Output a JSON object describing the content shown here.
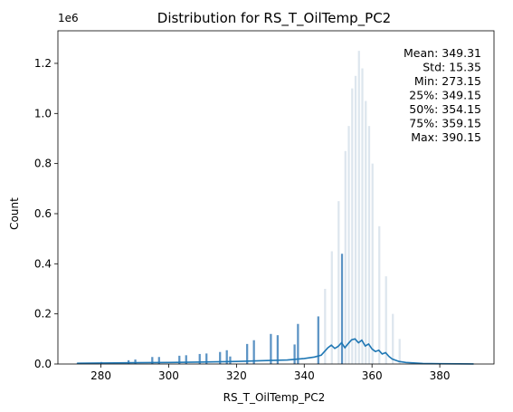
{
  "chart_data": {
    "type": "histogram",
    "title": "Distribution for RS_T_OilTemp_PC2",
    "xlabel": "RS_T_OilTemp_PC2",
    "ylabel": "Count",
    "y_offset_label": "1e6",
    "xlim": [
      267.3,
      396.0
    ],
    "ylim": [
      0,
      1.33
    ],
    "y_unit_multiplier": 1000000,
    "x_ticks": [
      280,
      300,
      320,
      340,
      360,
      380
    ],
    "y_ticks": [
      0.0,
      0.2,
      0.4,
      0.6,
      0.8,
      1.0,
      1.2
    ],
    "x_tick_labels": [
      "280",
      "300",
      "320",
      "340",
      "360",
      "380"
    ],
    "y_tick_labels": [
      "0.0",
      "0.2",
      "0.4",
      "0.6",
      "0.8",
      "1.0",
      "1.2"
    ],
    "grid": false,
    "bar_color": "#5b93c4",
    "faint_bar_color": "#dde6ee",
    "kde_color": "#1f77b4",
    "stats_lines": [
      "Mean: 349.31",
      "Std: 15.35",
      "Min: 273.15",
      "25%: 349.15",
      "50%: 354.15",
      "75%: 359.15",
      "Max: 390.15"
    ],
    "visible_bars": [
      {
        "x": 273.15,
        "count": 0.005
      },
      {
        "x": 280.15,
        "count": 0.008
      },
      {
        "x": 288.15,
        "count": 0.015
      },
      {
        "x": 290.15,
        "count": 0.018
      },
      {
        "x": 295.15,
        "count": 0.028
      },
      {
        "x": 297.15,
        "count": 0.028
      },
      {
        "x": 303.15,
        "count": 0.033
      },
      {
        "x": 305.15,
        "count": 0.035
      },
      {
        "x": 309.15,
        "count": 0.04
      },
      {
        "x": 311.15,
        "count": 0.042
      },
      {
        "x": 315.15,
        "count": 0.048
      },
      {
        "x": 317.15,
        "count": 0.055
      },
      {
        "x": 318.15,
        "count": 0.03
      },
      {
        "x": 323.15,
        "count": 0.08
      },
      {
        "x": 325.15,
        "count": 0.095
      },
      {
        "x": 330.15,
        "count": 0.12
      },
      {
        "x": 332.15,
        "count": 0.115
      },
      {
        "x": 337.15,
        "count": 0.078
      },
      {
        "x": 338.15,
        "count": 0.16
      },
      {
        "x": 344.15,
        "count": 0.19
      },
      {
        "x": 351.15,
        "count": 0.44
      }
    ],
    "faint_bars": [
      {
        "x": 346.15,
        "count": 0.3
      },
      {
        "x": 348.15,
        "count": 0.45
      },
      {
        "x": 350.15,
        "count": 0.65
      },
      {
        "x": 352.15,
        "count": 0.85
      },
      {
        "x": 353.15,
        "count": 0.95
      },
      {
        "x": 354.15,
        "count": 1.1
      },
      {
        "x": 355.15,
        "count": 1.15
      },
      {
        "x": 356.15,
        "count": 1.25
      },
      {
        "x": 357.15,
        "count": 1.18
      },
      {
        "x": 358.15,
        "count": 1.05
      },
      {
        "x": 359.15,
        "count": 0.95
      },
      {
        "x": 360.15,
        "count": 0.8
      },
      {
        "x": 362.15,
        "count": 0.55
      },
      {
        "x": 364.15,
        "count": 0.35
      },
      {
        "x": 366.15,
        "count": 0.2
      },
      {
        "x": 368.15,
        "count": 0.1
      }
    ],
    "kde": {
      "x": [
        273.0,
        280.0,
        290.0,
        300.0,
        310.0,
        320.0,
        330.0,
        335.0,
        340.0,
        343.0,
        345.0,
        346.0,
        347.0,
        348.0,
        349.0,
        350.0,
        351.0,
        352.0,
        353.0,
        354.0,
        355.0,
        356.0,
        357.0,
        358.0,
        359.0,
        360.0,
        361.0,
        362.0,
        363.0,
        364.0,
        365.0,
        366.0,
        368.0,
        370.0,
        375.0,
        380.0,
        390.0
      ],
      "y": [
        0.003,
        0.004,
        0.005,
        0.006,
        0.008,
        0.01,
        0.014,
        0.016,
        0.022,
        0.028,
        0.035,
        0.05,
        0.065,
        0.075,
        0.062,
        0.07,
        0.085,
        0.065,
        0.082,
        0.097,
        0.1,
        0.085,
        0.095,
        0.072,
        0.08,
        0.06,
        0.05,
        0.055,
        0.04,
        0.045,
        0.03,
        0.02,
        0.01,
        0.006,
        0.002,
        0.001,
        0.0005
      ]
    }
  }
}
